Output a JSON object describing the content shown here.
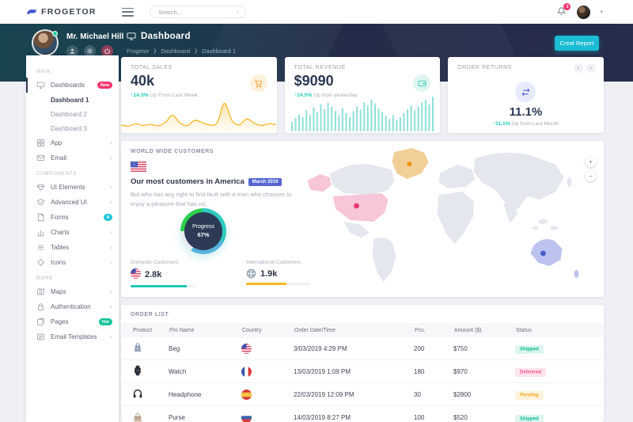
{
  "topbar": {
    "brand": "FROGETOR",
    "search_placeholder": "Search...",
    "notification_count": "3"
  },
  "header": {
    "user_name": "Mr. Michael Hill",
    "title": "Dashboard",
    "breadcrumb": [
      "Frogetor",
      "Dashboard",
      "Dashboard 1"
    ],
    "create_report_label": "Creat Report"
  },
  "colors": {
    "accent_cyan": "#1bbcd4",
    "teal": "#1dc9b7",
    "yellow": "#fbb624",
    "pink_badge": "#f4346b",
    "green_badge": "#15c39a",
    "indigo": "#5465d2"
  },
  "sidebar": {
    "sections": [
      {
        "label": "MAIN",
        "items": [
          {
            "label": "Dashboards",
            "icon": "monitor-icon",
            "badge": "New",
            "badge_color": "#f4346b",
            "active": true,
            "children": [
              "Dashboard 1",
              "Dashboard 2",
              "Dashboard 3"
            ]
          },
          {
            "label": "App",
            "icon": "grid-icon",
            "chevron": true
          },
          {
            "label": "Email",
            "icon": "mail-icon",
            "chevron": true
          }
        ]
      },
      {
        "label": "COMPONENTS",
        "items": [
          {
            "label": "UI Elements",
            "icon": "gem-icon",
            "chevron": true
          },
          {
            "label": "Advanced UI",
            "icon": "layers-icon",
            "chevron": true
          },
          {
            "label": "Forms",
            "icon": "file-icon",
            "badge": "8",
            "badge_color": "#22c7dc"
          },
          {
            "label": "Charts",
            "icon": "bar-chart-icon",
            "chevron": true
          },
          {
            "label": "Tables",
            "icon": "table-icon",
            "chevron": true
          },
          {
            "label": "Icons",
            "icon": "diamond-icon",
            "chevron": true
          }
        ]
      },
      {
        "label": "MORE",
        "items": [
          {
            "label": "Maps",
            "icon": "map-icon",
            "chevron": true
          },
          {
            "label": "Authentication",
            "icon": "lock-icon",
            "chevron": true
          },
          {
            "label": "Pages",
            "icon": "pages-icon",
            "badge": "Hot",
            "badge_color": "#15c39a"
          },
          {
            "label": "Email Templates",
            "icon": "mail-open-icon",
            "chevron": true
          }
        ]
      }
    ]
  },
  "stats": {
    "sales": {
      "title": "TOTAL SALES",
      "value": "40k",
      "delta": "14.5%",
      "delta_text": "Up From Last Week",
      "spark": [
        2,
        1.6,
        2.4,
        1.8,
        2.2,
        1.7,
        2.9,
        5.4,
        2.6,
        1.8,
        3.6,
        2.8,
        2,
        2.7,
        9.6,
        3.6,
        2,
        4.1,
        2.7,
        1.8,
        2.4,
        2.1
      ]
    },
    "revenue": {
      "title": "TOTAL REVENUE",
      "value": "$9090",
      "delta": "14.5%",
      "delta_text": "Up from yesterday",
      "bars": [
        10,
        14,
        18,
        15,
        22,
        17,
        25,
        20,
        28,
        23,
        30,
        26,
        21,
        17,
        24,
        19,
        15,
        21,
        26,
        23,
        30,
        27,
        33,
        29,
        24,
        20,
        16,
        13,
        17,
        12,
        15,
        19,
        23,
        27,
        22,
        26,
        30,
        33,
        28,
        36
      ]
    },
    "returns": {
      "title": "ORDER RETURNS",
      "value": "11.1%",
      "delta": "11.1%",
      "delta_text": "Up from Last Month"
    }
  },
  "worldwide": {
    "title": "WORLD WIDE CUSTOMERS",
    "heading": "Our most customers in America",
    "badge": "March 2019",
    "body": "But who has any right to find fault with a man who chooses to enjoy a pleasure that has no.",
    "progress_label": "Progress",
    "progress_value": "67%",
    "domestic": {
      "label": "Domestic Customers",
      "value": "2.8k"
    },
    "international": {
      "label": "International Customers",
      "value": "1.9k"
    }
  },
  "orders": {
    "title": "ORDER LIST",
    "columns": [
      "Product",
      "Pro Name",
      "Country",
      "Order Date/Time",
      "Pcs.",
      "Amount ($)",
      "Status"
    ],
    "rows": [
      {
        "product_icon": "bag-icon",
        "name": "Beg",
        "country": "us",
        "date": "3/03/2019 4:29 PM",
        "pcs": "200",
        "amount": "$750",
        "status": "Shipped"
      },
      {
        "product_icon": "watch-icon",
        "name": "Watch",
        "country": "fr",
        "date": "13/03/2019 1:09 PM",
        "pcs": "180",
        "amount": "$970",
        "status": "Delivered"
      },
      {
        "product_icon": "headphone-icon",
        "name": "Headphone",
        "country": "es",
        "date": "22/03/2019 12:09 PM",
        "pcs": "30",
        "amount": "$2800",
        "status": "Pending"
      },
      {
        "product_icon": "purse-icon",
        "name": "Purse",
        "country": "ru",
        "date": "14/03/2019 8:27 PM",
        "pcs": "100",
        "amount": "$520",
        "status": "Shipped"
      }
    ]
  }
}
